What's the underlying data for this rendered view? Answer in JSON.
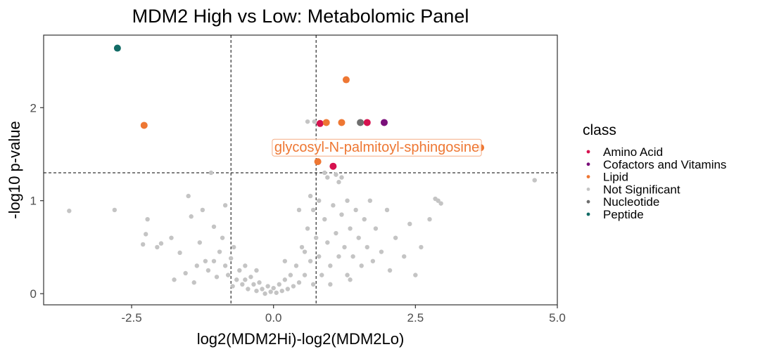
{
  "chart_data": {
    "type": "scatter",
    "title": "MDM2 High vs Low: Metabolomic Panel",
    "xlabel": "log2(MDM2Hi)-log2(MDM2Lo)",
    "ylabel": "-log10 p-value",
    "xlim": [
      -4.05,
      5.0
    ],
    "ylim": [
      -0.12,
      2.78
    ],
    "x_ticks": [
      -2.5,
      0.0,
      2.5,
      5.0
    ],
    "x_tick_labels": [
      "-2.5",
      "0.0",
      "2.5",
      "5.0"
    ],
    "y_ticks": [
      0,
      1,
      2
    ],
    "y_tick_labels": [
      "0",
      "1",
      "2"
    ],
    "grid": false,
    "thresholds": {
      "x": [
        -0.75,
        0.75
      ],
      "y": 1.3
    },
    "legend": {
      "title": "class",
      "placement": "right",
      "entries": [
        {
          "label": "Amino Acid",
          "color": "#D6124F"
        },
        {
          "label": "Cofactors and Vitamins",
          "color": "#7A0F7A"
        },
        {
          "label": "Lipid",
          "color": "#EE7733"
        },
        {
          "label": "Not Significant",
          "color": "#C4C4C4"
        },
        {
          "label": "Nucleotide",
          "color": "#6E6E6E"
        },
        {
          "label": "Peptide",
          "color": "#126B66"
        }
      ]
    },
    "annotation": {
      "label": "glycosyl-N-palmitoyl-sphingosine",
      "x": 3.65,
      "y": 1.57,
      "color": "#EE7733"
    },
    "series": [
      {
        "name": "Amino Acid",
        "color": "#D6124F",
        "points": [
          [
            0.82,
            1.83
          ],
          [
            1.65,
            1.84
          ],
          [
            1.05,
            1.37
          ]
        ]
      },
      {
        "name": "Cofactors and Vitamins",
        "color": "#7A0F7A",
        "points": [
          [
            1.95,
            1.84
          ]
        ]
      },
      {
        "name": "Lipid",
        "color": "#EE7733",
        "points": [
          [
            -2.28,
            1.81
          ],
          [
            1.28,
            2.3
          ],
          [
            0.93,
            1.84
          ],
          [
            1.2,
            1.84
          ],
          [
            0.78,
            1.42
          ],
          [
            3.65,
            1.57
          ]
        ]
      },
      {
        "name": "Nucleotide",
        "color": "#6E6E6E",
        "points": [
          [
            1.53,
            1.84
          ]
        ]
      },
      {
        "name": "Peptide",
        "color": "#126B66",
        "points": [
          [
            -2.75,
            2.64
          ]
        ]
      },
      {
        "name": "Not Significant",
        "color": "#C4C4C4",
        "points": [
          [
            -3.6,
            0.89
          ],
          [
            -2.8,
            0.9
          ],
          [
            -2.3,
            0.53
          ],
          [
            -2.25,
            0.64
          ],
          [
            -2.22,
            0.8
          ],
          [
            -2.05,
            0.5
          ],
          [
            -1.98,
            0.54
          ],
          [
            -1.8,
            0.6
          ],
          [
            -1.75,
            0.15
          ],
          [
            -1.65,
            0.44
          ],
          [
            -1.55,
            0.22
          ],
          [
            -1.5,
            1.05
          ],
          [
            -1.45,
            0.83
          ],
          [
            -1.4,
            0.12
          ],
          [
            -1.35,
            0.3
          ],
          [
            -1.3,
            0.55
          ],
          [
            -1.25,
            0.9
          ],
          [
            -1.2,
            0.35
          ],
          [
            -1.15,
            0.25
          ],
          [
            -1.1,
            1.3
          ],
          [
            -1.05,
            0.72
          ],
          [
            -1.0,
            0.18
          ],
          [
            -0.95,
            0.45
          ],
          [
            -0.9,
            0.6
          ],
          [
            -0.85,
            0.95
          ],
          [
            -0.85,
            0.3
          ],
          [
            -0.8,
            0.2
          ],
          [
            -0.75,
            0.38
          ],
          [
            -0.72,
            0.08
          ],
          [
            -0.7,
            0.5
          ],
          [
            -0.65,
            0.15
          ],
          [
            -0.6,
            0.25
          ],
          [
            -0.55,
            0.1
          ],
          [
            -0.5,
            0.3
          ],
          [
            -0.45,
            0.05
          ],
          [
            -0.4,
            0.18
          ],
          [
            -0.35,
            0.1
          ],
          [
            -0.3,
            0.03
          ],
          [
            -0.25,
            0.12
          ],
          [
            -0.2,
            0.05
          ],
          [
            -0.15,
            0.0
          ],
          [
            -0.1,
            0.08
          ],
          [
            -0.05,
            0.02
          ],
          [
            0.0,
            0.06
          ],
          [
            0.05,
            0.01
          ],
          [
            0.1,
            0.1
          ],
          [
            0.15,
            0.03
          ],
          [
            0.2,
            0.15
          ],
          [
            0.25,
            0.05
          ],
          [
            0.3,
            0.2
          ],
          [
            0.35,
            0.08
          ],
          [
            0.4,
            0.3
          ],
          [
            0.45,
            0.12
          ],
          [
            0.5,
            0.5
          ],
          [
            0.55,
            0.2
          ],
          [
            0.6,
            0.7
          ],
          [
            0.65,
            0.35
          ],
          [
            0.7,
            0.9
          ],
          [
            0.7,
            0.1
          ],
          [
            0.75,
            0.6
          ],
          [
            0.8,
            1.0
          ],
          [
            0.8,
            0.4
          ],
          [
            0.85,
            0.2
          ],
          [
            0.9,
            0.8
          ],
          [
            0.95,
            1.25
          ],
          [
            0.95,
            0.55
          ],
          [
            1.0,
            0.3
          ],
          [
            1.05,
            0.95
          ],
          [
            1.1,
            0.65
          ],
          [
            1.15,
            0.4
          ],
          [
            1.15,
            1.2
          ],
          [
            1.2,
            0.85
          ],
          [
            1.25,
            0.5
          ],
          [
            1.3,
            1.0
          ],
          [
            1.3,
            0.2
          ],
          [
            1.35,
            0.7
          ],
          [
            1.4,
            0.4
          ],
          [
            1.45,
            0.9
          ],
          [
            1.5,
            0.6
          ],
          [
            1.55,
            0.3
          ],
          [
            1.6,
            0.8
          ],
          [
            1.65,
            0.5
          ],
          [
            1.7,
            1.0
          ],
          [
            1.75,
            0.35
          ],
          [
            1.8,
            0.7
          ],
          [
            1.9,
            0.45
          ],
          [
            2.0,
            0.9
          ],
          [
            2.05,
            0.25
          ],
          [
            2.15,
            0.6
          ],
          [
            2.3,
            0.4
          ],
          [
            2.4,
            0.75
          ],
          [
            2.5,
            0.2
          ],
          [
            2.6,
            0.5
          ],
          [
            2.75,
            0.8
          ],
          [
            2.9,
            1.0
          ],
          [
            2.95,
            0.97
          ],
          [
            2.85,
            1.02
          ],
          [
            4.6,
            1.22
          ],
          [
            0.6,
            1.85
          ],
          [
            0.72,
            1.85
          ],
          [
            0.9,
            1.3
          ],
          [
            1.1,
            1.28
          ],
          [
            1.2,
            1.25
          ],
          [
            -1.05,
            0.35
          ],
          [
            -0.5,
            0.15
          ],
          [
            0.2,
            0.35
          ],
          [
            0.55,
            0.45
          ],
          [
            1.0,
            0.1
          ],
          [
            1.35,
            0.15
          ],
          [
            -0.3,
            0.25
          ],
          [
            0.45,
            0.9
          ],
          [
            0.65,
            1.05
          ]
        ]
      }
    ]
  }
}
